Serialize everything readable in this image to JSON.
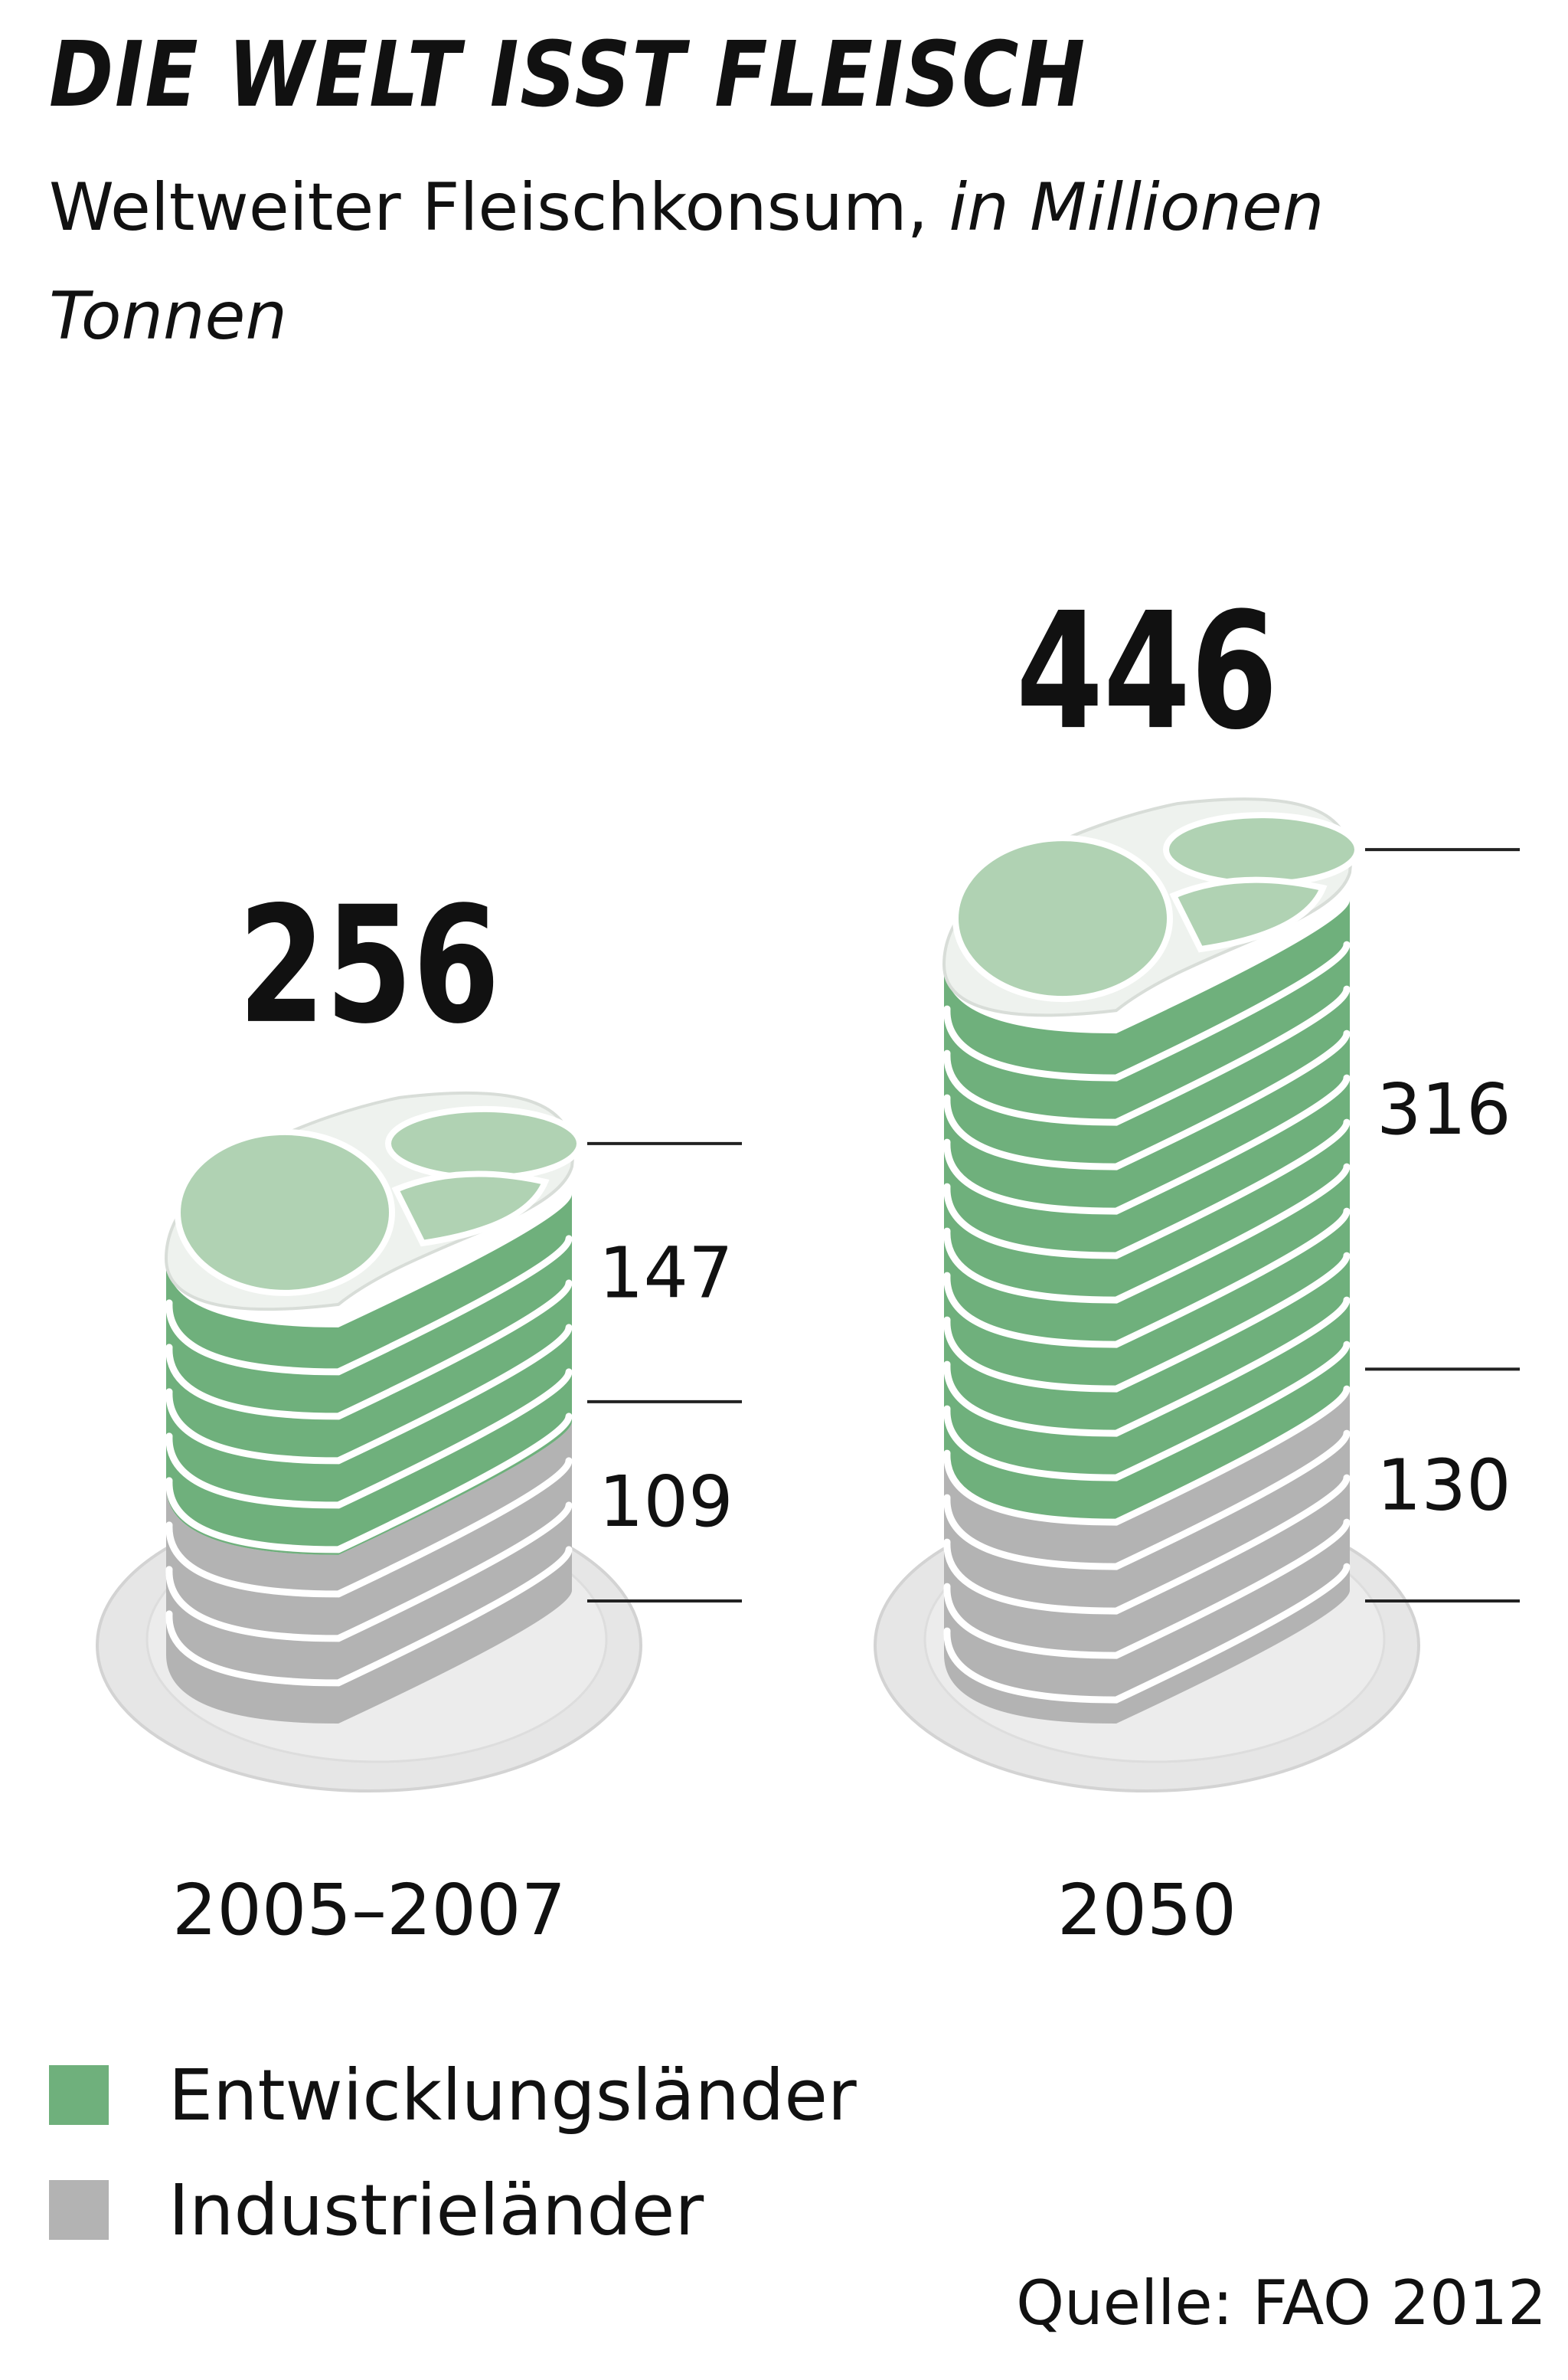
{
  "chart_data": {
    "type": "bar",
    "stacked": true,
    "title": "DIE WELT ISST FLEISCH",
    "subtitle": "Weltweiter Fleischkonsum,",
    "unit": "in Millionen Tonnen",
    "categories": [
      "2005–2007",
      "2050"
    ],
    "totals": [
      "256",
      "446"
    ],
    "series": [
      {
        "name": "Industrieländer",
        "values": [
          109,
          130
        ],
        "labels": [
          "109",
          "130"
        ]
      },
      {
        "name": "Entwicklungsländer",
        "values": [
          147,
          316
        ],
        "labels": [
          "147",
          "316"
        ]
      }
    ],
    "legend_position": "bottom-left",
    "grid": false,
    "source": "Quelle: FAO 2012"
  },
  "colors": {
    "developing": "#6fb07c",
    "developing_top": "#b0d2b3",
    "industrial": "#b3b3b3",
    "plate": "#e6e6e6",
    "stripe": "#ffffff"
  }
}
